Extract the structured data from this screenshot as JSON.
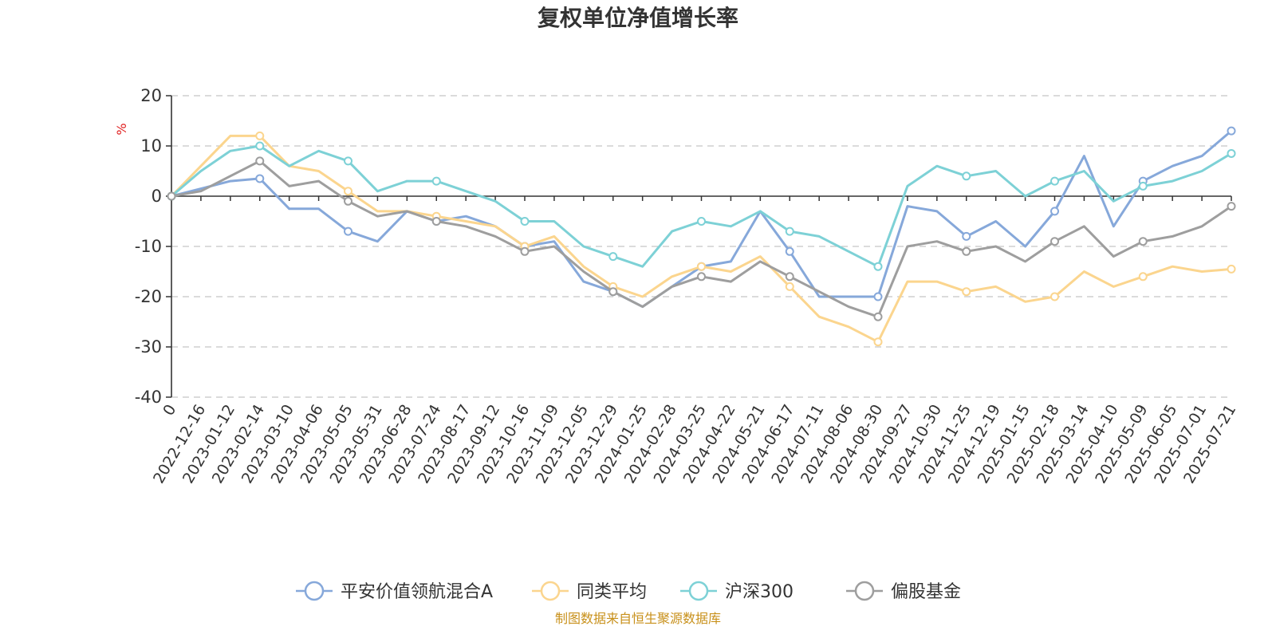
{
  "chart_data": {
    "type": "line",
    "title": "复权单位净值增长率",
    "ylabel": "%",
    "ylim": [
      -40,
      20
    ],
    "yticks": [
      "20",
      "10",
      "0",
      "-10",
      "-20",
      "-30",
      "-40"
    ],
    "x": [
      "0",
      "2022-12-16",
      "2023-01-12",
      "2023-02-14",
      "2023-03-10",
      "2023-04-06",
      "2023-05-05",
      "2023-05-31",
      "2023-06-28",
      "2023-07-24",
      "2023-08-17",
      "2023-09-12",
      "2023-10-16",
      "2023-11-09",
      "2023-12-05",
      "2023-12-29",
      "2024-01-25",
      "2024-02-28",
      "2024-03-25",
      "2024-04-22",
      "2024-05-21",
      "2024-06-17",
      "2024-07-11",
      "2024-08-06",
      "2024-08-30",
      "2024-09-27",
      "2024-10-30",
      "2024-11-25",
      "2024-12-19",
      "2025-01-15",
      "2025-02-18",
      "2025-03-14",
      "2025-04-10",
      "2025-05-09",
      "2025-06-05",
      "2025-07-01",
      "2025-07-21"
    ],
    "grid": true,
    "legend_position": "bottom",
    "series": [
      {
        "name": "平安价值领航混合A",
        "color": "#86a8da",
        "values": [
          0,
          1.5,
          3,
          3.5,
          -2.5,
          -2.5,
          -7,
          -9,
          -3,
          -5,
          -4,
          -6,
          -10,
          -9,
          -17,
          -19,
          -22,
          -18,
          -14,
          -13,
          -3,
          -11,
          -20,
          -20,
          -20,
          -2,
          -3,
          -8,
          -5,
          -10,
          -3,
          8,
          -6,
          3,
          6,
          8,
          13
        ]
      },
      {
        "name": "同类平均",
        "color": "#fbd58e",
        "values": [
          0,
          6,
          12,
          12,
          6,
          5,
          1,
          -3,
          -3,
          -4,
          -5,
          -6,
          -10,
          -8,
          -14,
          -18,
          -20,
          -16,
          -14,
          -15,
          -12,
          -18,
          -24,
          -26,
          -29,
          -17,
          -17,
          -19,
          -18,
          -21,
          -20,
          -15,
          -18,
          -16,
          -14,
          -15,
          -14.5
        ]
      },
      {
        "name": "沪深300",
        "color": "#7dd1d6",
        "values": [
          0,
          5,
          9,
          10,
          6,
          9,
          7,
          1,
          3,
          3,
          1,
          -1,
          -5,
          -5,
          -10,
          -12,
          -14,
          -7,
          -5,
          -6,
          -3,
          -7,
          -8,
          -11,
          -14,
          2,
          6,
          4,
          5,
          0,
          3,
          5,
          -1,
          2,
          3,
          5,
          8.5
        ]
      },
      {
        "name": "偏股基金",
        "color": "#9e9e9e",
        "values": [
          0,
          1,
          4,
          7,
          2,
          3,
          -1,
          -4,
          -3,
          -5,
          -6,
          -8,
          -11,
          -10,
          -15,
          -19,
          -22,
          -18,
          -16,
          -17,
          -13,
          -16,
          -19,
          -22,
          -24,
          -10,
          -9,
          -11,
          -10,
          -13,
          -9,
          -6,
          -12,
          -9,
          -8,
          -6,
          -2
        ]
      }
    ],
    "source_note": "制图数据来自恒生聚源数据库"
  }
}
